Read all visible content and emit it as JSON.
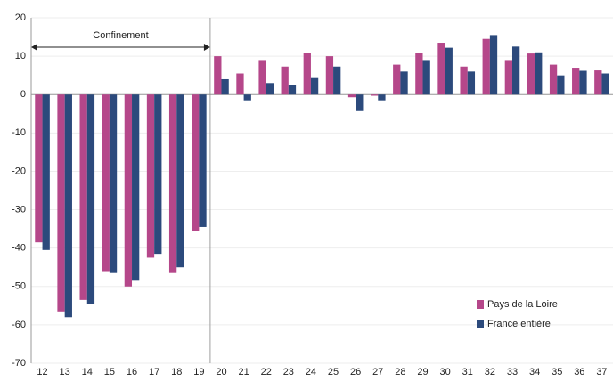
{
  "chart_data": {
    "type": "bar",
    "annotation": "Confinement",
    "categories": [
      "12",
      "13",
      "14",
      "15",
      "16",
      "17",
      "18",
      "19",
      "20",
      "21",
      "22",
      "23",
      "24",
      "25",
      "26",
      "27",
      "28",
      "29",
      "30",
      "31",
      "32",
      "33",
      "34",
      "35",
      "36",
      "37"
    ],
    "series": [
      {
        "name": "Pays de la Loire",
        "color": "#b5478a",
        "values": [
          -38.5,
          -56.5,
          -53.5,
          -46,
          -50,
          -42.5,
          -46.5,
          -35.5,
          10,
          5.5,
          9,
          7.3,
          10.8,
          10,
          -0.7,
          -0.3,
          7.8,
          10.8,
          13.5,
          7.3,
          14.5,
          9,
          10.7,
          7.8,
          7,
          6.3
        ]
      },
      {
        "name": "France entière",
        "color": "#2c4a7c",
        "values": [
          -40.5,
          -58,
          -54.5,
          -46.5,
          -48.5,
          -41.5,
          -45,
          -34.5,
          4,
          -1.5,
          3,
          2.5,
          4.3,
          7.3,
          -4.3,
          -1.5,
          6,
          9,
          12.2,
          6,
          15.5,
          12.5,
          11,
          5,
          6.2,
          5.5
        ]
      }
    ],
    "ylim": [
      -70,
      20
    ],
    "yticks": [
      -70,
      -60,
      -50,
      -40,
      -30,
      -20,
      -10,
      0,
      10,
      20
    ],
    "grid": true,
    "legend": "lower-right"
  }
}
